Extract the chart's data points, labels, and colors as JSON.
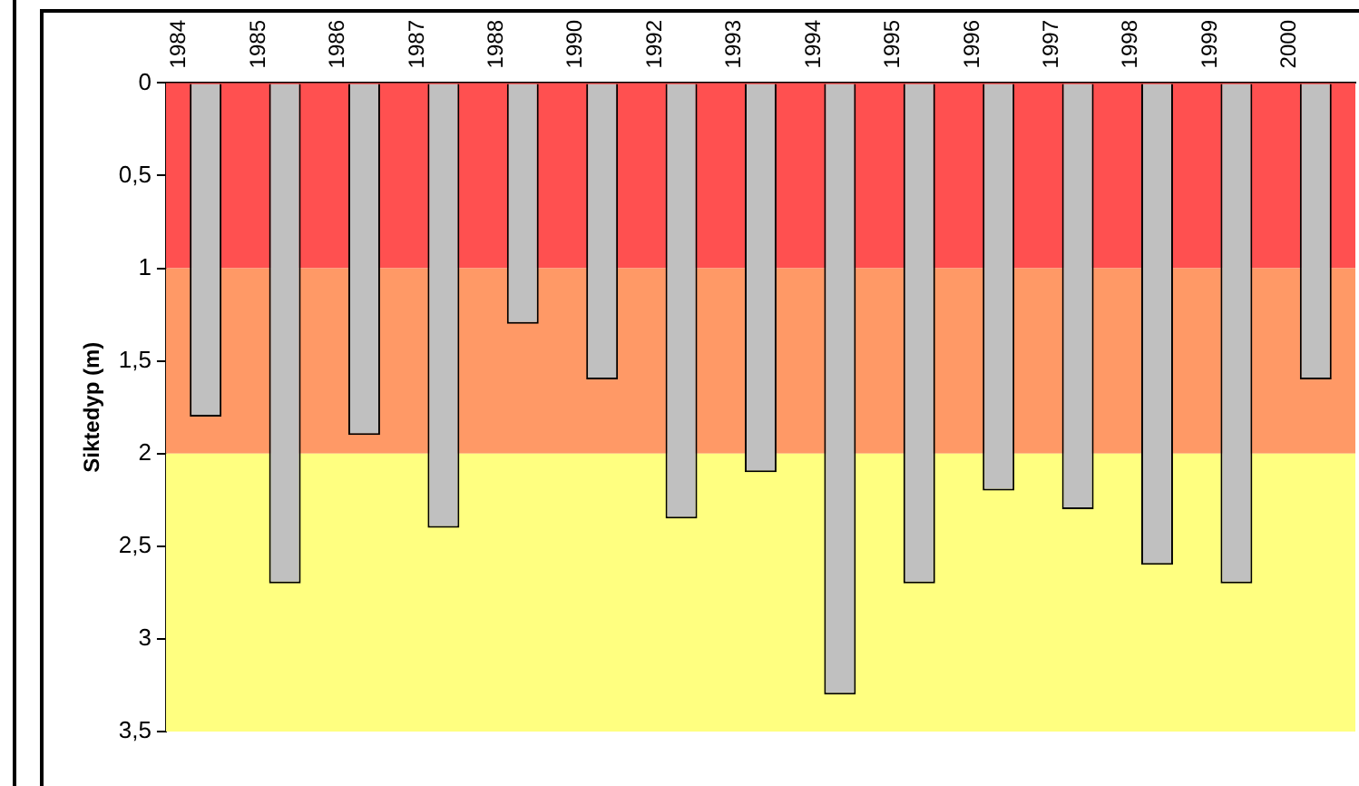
{
  "chart_data": {
    "type": "bar",
    "ylabel": "Siktedyp (m)",
    "categories": [
      "1984",
      "1985",
      "1986",
      "1987",
      "1988",
      "1990",
      "1992",
      "1993",
      "1994",
      "1995",
      "1996",
      "1997",
      "1998",
      "1999",
      "2000"
    ],
    "values": [
      1.8,
      2.7,
      1.9,
      2.4,
      1.3,
      1.6,
      2.35,
      2.1,
      3.3,
      2.7,
      2.2,
      2.3,
      2.6,
      2.7,
      1.6
    ],
    "color": "#c0c0c0",
    "ylim": [
      3.5,
      0
    ],
    "yticks": [
      0,
      {
        "value": 0.5,
        "label": "0,5"
      },
      1,
      {
        "value": 1.5,
        "label": "1,5"
      },
      2,
      {
        "value": 2.5,
        "label": "2,5"
      },
      3,
      {
        "value": 3.5,
        "label": "3,5"
      }
    ],
    "bands": [
      {
        "axis": "y",
        "from": 0,
        "to": 1,
        "color": "#ff5050"
      },
      {
        "axis": "y",
        "from": 1,
        "to": 2,
        "color": "#ff9966"
      },
      {
        "axis": "y",
        "from": 2,
        "to": 3.5,
        "color": "#ffff80"
      }
    ],
    "grid": false,
    "legend": false
  }
}
